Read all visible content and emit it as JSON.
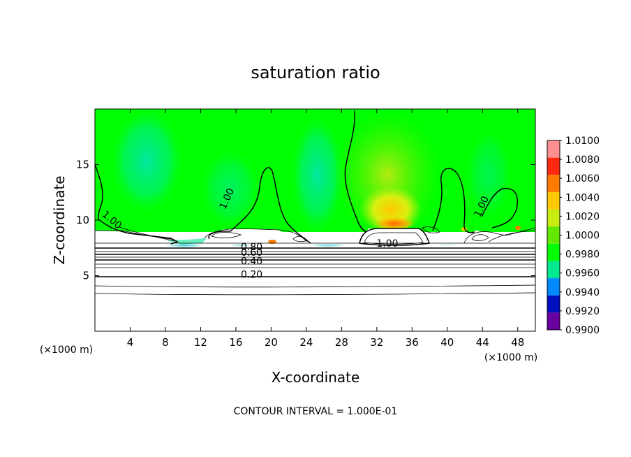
{
  "chart_data": {
    "type": "heatmap",
    "title": "saturation ratio",
    "xlabel": "X-coordinate",
    "ylabel": "Z-coordinate",
    "x_unit": "(×1000 m)",
    "xlim": [
      0,
      50
    ],
    "ylim": [
      0,
      20
    ],
    "x_ticks": [
      4,
      8,
      12,
      16,
      20,
      24,
      28,
      32,
      36,
      40,
      44,
      48
    ],
    "y_ticks": [
      5,
      10,
      15
    ],
    "colorbar": {
      "min": 0.99,
      "max": 1.01,
      "labels": [
        "1.0100",
        "1.0080",
        "1.0060",
        "1.0040",
        "1.0020",
        "1.0000",
        "0.9980",
        "0.9960",
        "0.9940",
        "0.9920",
        "0.9900"
      ],
      "colors": [
        "#ff9090",
        "#ff2a10",
        "#ff7a00",
        "#ffc800",
        "#c8ec10",
        "#64e800",
        "#00ff00",
        "#00e890",
        "#0088ff",
        "#0010c0",
        "#6a00a0"
      ]
    },
    "contour_labels": [
      {
        "text": "1.00",
        "x": 15.3,
        "y": 11.8
      },
      {
        "text": "1.00",
        "x": 1.7,
        "y": 9.8
      },
      {
        "text": "1.00",
        "x": 44.2,
        "y": 11.1
      },
      {
        "text": "1.00",
        "x": 33.2,
        "y": 7.6
      },
      {
        "text": "0.80",
        "x": 17.8,
        "y": 7.3
      },
      {
        "text": "0.60",
        "x": 17.8,
        "y": 6.8
      },
      {
        "text": "0.40",
        "x": 17.8,
        "y": 6.0
      },
      {
        "text": "0.20",
        "x": 17.8,
        "y": 4.8
      }
    ],
    "contour_levels": [
      0.2,
      0.4,
      0.6,
      0.8,
      1.0
    ],
    "annotation": "CONTOUR INTERVAL = 1.000E-01"
  }
}
